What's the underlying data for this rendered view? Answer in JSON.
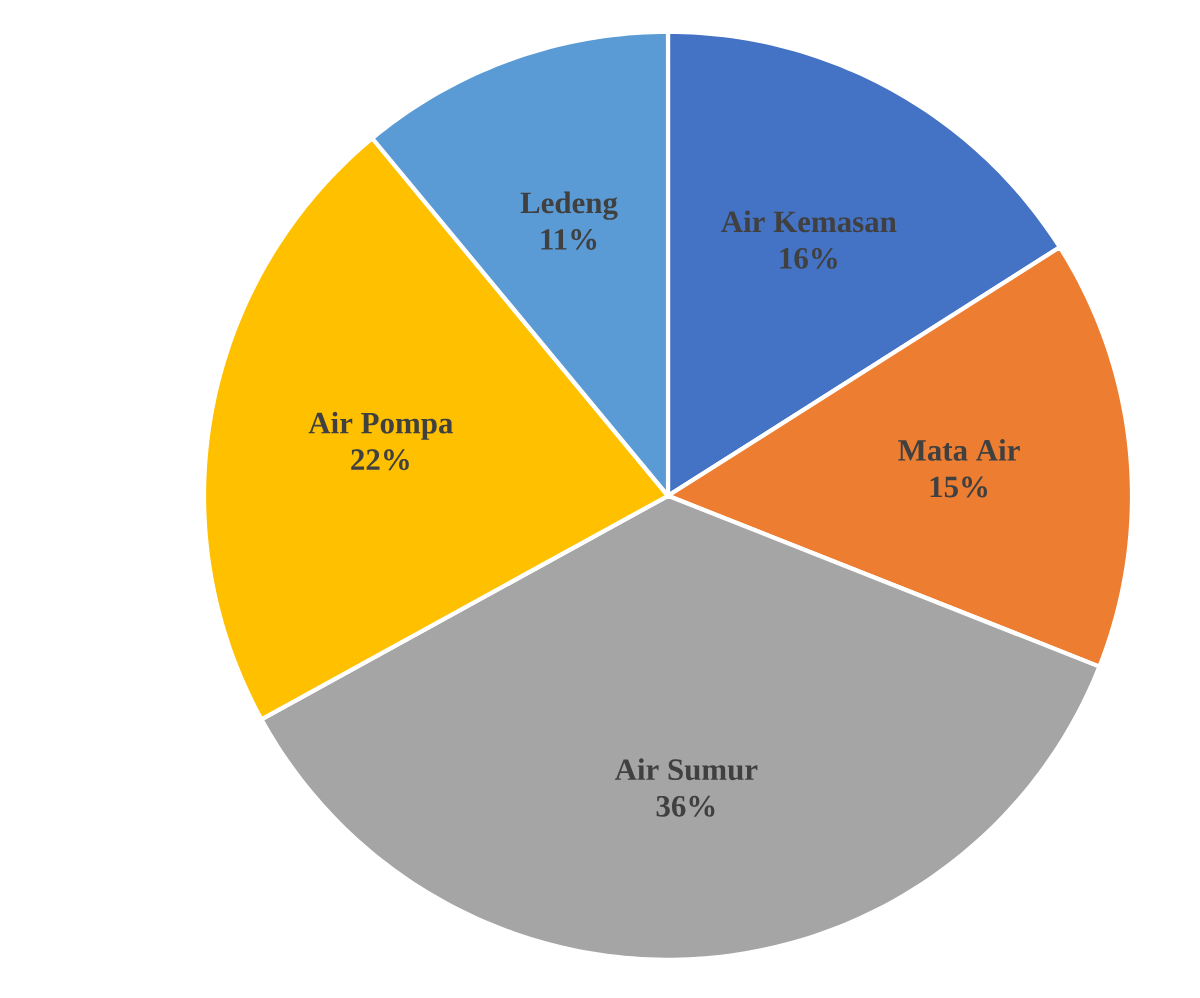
{
  "chart_data": {
    "type": "pie",
    "categories": [
      "Air Kemasan",
      "Mata Air",
      "Air Sumur",
      "Air Pompa",
      "Ledeng"
    ],
    "values": [
      16,
      15,
      36,
      22,
      11
    ],
    "value_labels": [
      "16%",
      "15%",
      "36%",
      "22%",
      "11%"
    ],
    "colors": [
      "#4472c4",
      "#ed7d31",
      "#a5a5a5",
      "#ffc000",
      "#5b9bd5"
    ]
  }
}
